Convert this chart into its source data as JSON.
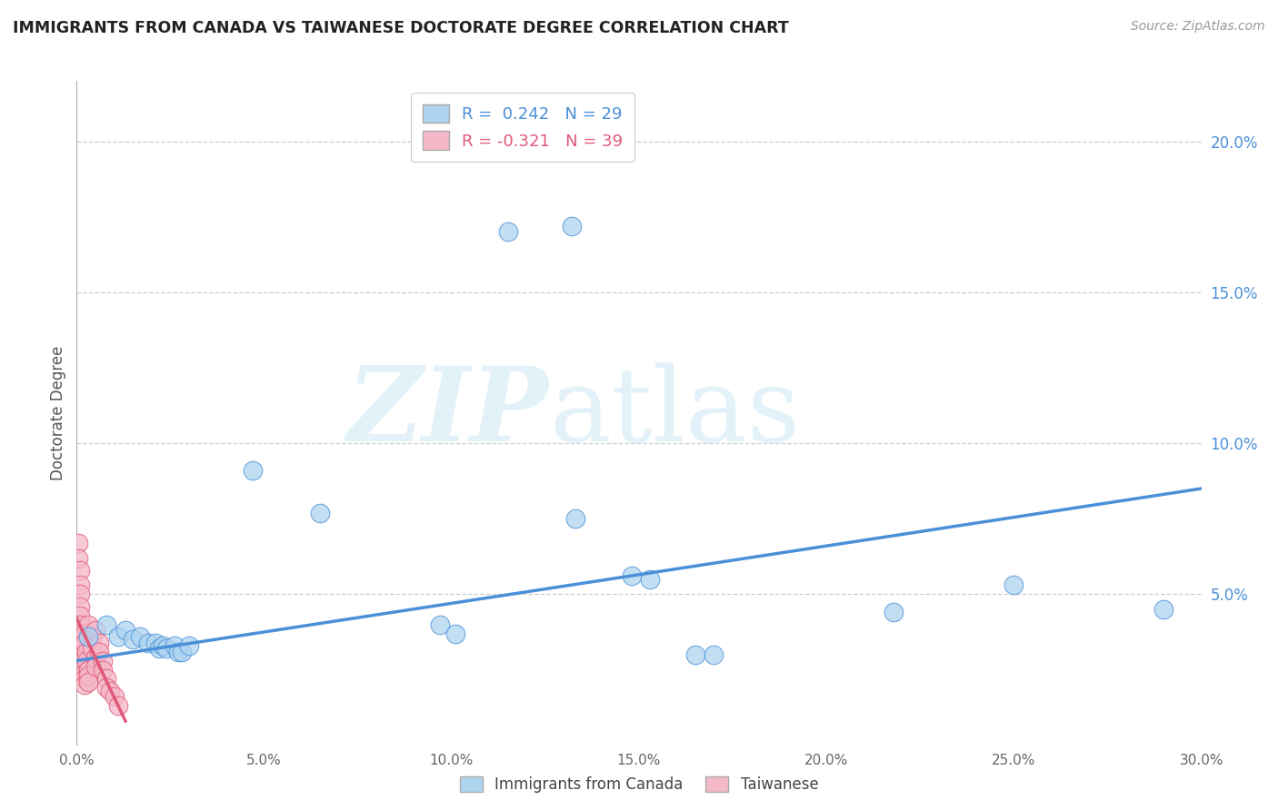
{
  "title": "IMMIGRANTS FROM CANADA VS TAIWANESE DOCTORATE DEGREE CORRELATION CHART",
  "source": "Source: ZipAtlas.com",
  "ylabel": "Doctorate Degree",
  "xlim": [
    0.0,
    0.3
  ],
  "ylim": [
    0.0,
    0.22
  ],
  "xticks": [
    0.0,
    0.05,
    0.1,
    0.15,
    0.2,
    0.25,
    0.3
  ],
  "xtick_labels": [
    "0.0%",
    "5.0%",
    "10.0%",
    "15.0%",
    "20.0%",
    "25.0%",
    "30.0%"
  ],
  "yticks_right": [
    0.05,
    0.1,
    0.15,
    0.2
  ],
  "ytick_labels_right": [
    "5.0%",
    "10.0%",
    "15.0%",
    "20.0%"
  ],
  "legend_line1": "R =  0.242   N = 29",
  "legend_line2": "R = -0.321   N = 39",
  "blue_color": "#AED4F0",
  "pink_color": "#F4B8C8",
  "trendline_blue": "#4A90D9",
  "trendline_pink": "#E05878",
  "watermark_zip": "ZIP",
  "watermark_atlas": "atlas",
  "blue_scatter": [
    [
      0.003,
      0.036
    ],
    [
      0.008,
      0.04
    ],
    [
      0.011,
      0.036
    ],
    [
      0.013,
      0.038
    ],
    [
      0.015,
      0.035
    ],
    [
      0.017,
      0.036
    ],
    [
      0.019,
      0.034
    ],
    [
      0.021,
      0.034
    ],
    [
      0.022,
      0.032
    ],
    [
      0.023,
      0.033
    ],
    [
      0.024,
      0.032
    ],
    [
      0.026,
      0.033
    ],
    [
      0.027,
      0.031
    ],
    [
      0.028,
      0.031
    ],
    [
      0.03,
      0.033
    ],
    [
      0.047,
      0.091
    ],
    [
      0.065,
      0.077
    ],
    [
      0.097,
      0.04
    ],
    [
      0.101,
      0.037
    ],
    [
      0.115,
      0.17
    ],
    [
      0.132,
      0.172
    ],
    [
      0.133,
      0.075
    ],
    [
      0.148,
      0.056
    ],
    [
      0.153,
      0.055
    ],
    [
      0.165,
      0.03
    ],
    [
      0.17,
      0.03
    ],
    [
      0.218,
      0.044
    ],
    [
      0.25,
      0.053
    ],
    [
      0.29,
      0.045
    ]
  ],
  "pink_scatter": [
    [
      0.0005,
      0.067
    ],
    [
      0.0005,
      0.062
    ],
    [
      0.001,
      0.058
    ],
    [
      0.001,
      0.053
    ],
    [
      0.001,
      0.05
    ],
    [
      0.001,
      0.046
    ],
    [
      0.001,
      0.043
    ],
    [
      0.001,
      0.04
    ],
    [
      0.001,
      0.037
    ],
    [
      0.0015,
      0.035
    ],
    [
      0.0015,
      0.033
    ],
    [
      0.0015,
      0.03
    ],
    [
      0.0015,
      0.028
    ],
    [
      0.002,
      0.026
    ],
    [
      0.002,
      0.024
    ],
    [
      0.002,
      0.022
    ],
    [
      0.002,
      0.02
    ],
    [
      0.002,
      0.037
    ],
    [
      0.002,
      0.034
    ],
    [
      0.0025,
      0.031
    ],
    [
      0.0025,
      0.028
    ],
    [
      0.003,
      0.025
    ],
    [
      0.003,
      0.023
    ],
    [
      0.003,
      0.021
    ],
    [
      0.003,
      0.04
    ],
    [
      0.004,
      0.036
    ],
    [
      0.004,
      0.032
    ],
    [
      0.005,
      0.029
    ],
    [
      0.005,
      0.026
    ],
    [
      0.005,
      0.038
    ],
    [
      0.006,
      0.034
    ],
    [
      0.006,
      0.031
    ],
    [
      0.007,
      0.028
    ],
    [
      0.007,
      0.025
    ],
    [
      0.008,
      0.022
    ],
    [
      0.008,
      0.019
    ],
    [
      0.009,
      0.018
    ],
    [
      0.01,
      0.016
    ],
    [
      0.011,
      0.013
    ]
  ],
  "blue_trendline_x": [
    0.0,
    0.3
  ],
  "blue_trendline_y": [
    0.028,
    0.085
  ],
  "pink_trendline_x": [
    0.0,
    0.013
  ],
  "pink_trendline_y": [
    0.042,
    0.008
  ]
}
